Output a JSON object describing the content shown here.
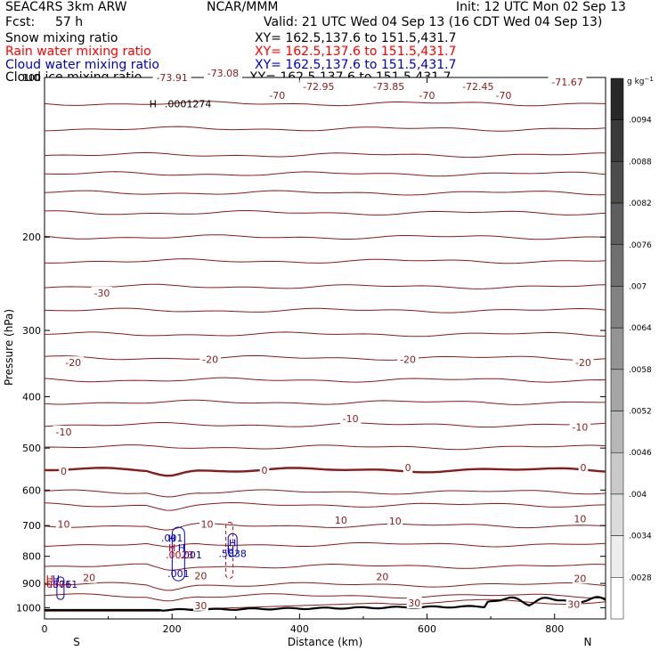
{
  "header": {
    "model": "SEAC4RS  3km ARW",
    "org": "NCAR/MMM",
    "init": "Init: 12 UTC Mon 02 Sep 13",
    "fcst_label": "Fcst:",
    "fcst_value": "57 h",
    "valid": "Valid: 21 UTC Wed 04 Sep 13 (16 CDT Wed 04 Sep 13)",
    "fields": [
      {
        "name": "Snow mixing ratio",
        "xy": "XY= 162.5,137.6 to 151.5,431.7",
        "color": "#000000"
      },
      {
        "name": "Rain water mixing ratio",
        "xy": "XY= 162.5,137.6 to 151.5,431.7",
        "color": "#ff0000"
      },
      {
        "name": "Cloud water mixing ratio",
        "xy": "XY= 162.5,137.6 to 151.5,431.7",
        "color": "#0000cc"
      },
      {
        "name": "Cloud ice mixing ratio",
        "xy": "XY= 162.5,137.6 to 151.5,431.7",
        "color": "#000000"
      }
    ]
  },
  "chart_data": {
    "type": "cross-section contour",
    "ylabel": "Pressure (hPa)",
    "xlabel": "Distance (km)",
    "xlim": [
      0,
      880
    ],
    "ylim": [
      1050,
      100
    ],
    "yscale": "log",
    "xticks": [
      0,
      200,
      400,
      600,
      800
    ],
    "yticks": [
      100,
      200,
      300,
      400,
      500,
      600,
      700,
      800,
      900,
      1000
    ],
    "end_labels": {
      "left": "S",
      "right": "N"
    },
    "colorbar": {
      "unit": "g kg",
      "unit_exp": "−1",
      "labels": [
        ".0094",
        ".0088",
        ".0082",
        ".0076",
        ".007",
        ".0064",
        ".0058",
        ".0052",
        ".0046",
        ".004",
        ".0034",
        ".0028"
      ]
    },
    "temperature_contours": {
      "color": "#8b1a1a",
      "freezing_level_hpa": 550,
      "labels": [
        {
          "text": "-73.91",
          "x": 200,
          "p": 100
        },
        {
          "text": "-73.08",
          "x": 280,
          "p": 98
        },
        {
          "text": "-72.95",
          "x": 430,
          "p": 104
        },
        {
          "text": "-73.85",
          "x": 540,
          "p": 104
        },
        {
          "text": "-72.45",
          "x": 680,
          "p": 104
        },
        {
          "text": "-71.67",
          "x": 820,
          "p": 102
        },
        {
          "text": "-70",
          "x": 365,
          "p": 108
        },
        {
          "text": "-70",
          "x": 600,
          "p": 108
        },
        {
          "text": "-70",
          "x": 720,
          "p": 108
        },
        {
          "text": "-30",
          "x": 90,
          "p": 255
        },
        {
          "text": "-20",
          "x": 45,
          "p": 345
        },
        {
          "text": "-20",
          "x": 260,
          "p": 340
        },
        {
          "text": "-20",
          "x": 570,
          "p": 340
        },
        {
          "text": "-20",
          "x": 845,
          "p": 345
        },
        {
          "text": "-10",
          "x": 30,
          "p": 466
        },
        {
          "text": "-10",
          "x": 480,
          "p": 440
        },
        {
          "text": "-10",
          "x": 840,
          "p": 456
        },
        {
          "text": "0",
          "x": 30,
          "p": 553
        },
        {
          "text": "0",
          "x": 345,
          "p": 550
        },
        {
          "text": "0",
          "x": 570,
          "p": 544
        },
        {
          "text": "0",
          "x": 845,
          "p": 544
        },
        {
          "text": "10",
          "x": 30,
          "p": 695
        },
        {
          "text": "10",
          "x": 255,
          "p": 695
        },
        {
          "text": "10",
          "x": 465,
          "p": 683
        },
        {
          "text": "10",
          "x": 550,
          "p": 686
        },
        {
          "text": "10",
          "x": 840,
          "p": 679
        },
        {
          "text": "20",
          "x": 70,
          "p": 878
        },
        {
          "text": "20",
          "x": 245,
          "p": 870
        },
        {
          "text": "20",
          "x": 530,
          "p": 873
        },
        {
          "text": "20",
          "x": 840,
          "p": 880
        },
        {
          "text": "30",
          "x": 245,
          "p": 990
        },
        {
          "text": "30",
          "x": 580,
          "p": 980
        },
        {
          "text": "30",
          "x": 830,
          "p": 985
        }
      ]
    },
    "mixing_ratio_labels": [
      {
        "text": ".0001274",
        "x": 225,
        "p": 112,
        "color": "#000000"
      },
      {
        "text": ".001",
        "x": 200,
        "p": 738,
        "color": "#0000cc"
      },
      {
        "text": ".001",
        "x": 210,
        "p": 862,
        "color": "#0000cc"
      },
      {
        "text": ".5838",
        "x": 295,
        "p": 790,
        "color": "#0000cc"
      },
      {
        "text": ".0023",
        "x": 212,
        "p": 795,
        "color": "#cc0000"
      },
      {
        "text": ".001",
        "x": 230,
        "p": 795,
        "color": "#0000cc"
      },
      {
        "text": ".0001",
        "x": 20,
        "p": 903,
        "color": "#cc0000"
      },
      {
        "text": ".5761",
        "x": 30,
        "p": 903,
        "color": "#0000cc"
      }
    ],
    "extrema_markers": [
      {
        "text": "H",
        "x": 170,
        "p": 112,
        "color": "#000000"
      },
      {
        "text": "H",
        "x": 200,
        "p": 770,
        "color": "#cc0000"
      },
      {
        "text": "H",
        "x": 215,
        "p": 770,
        "color": "#0000cc"
      },
      {
        "text": "H",
        "x": 292,
        "p": 777,
        "color": "#0000cc"
      },
      {
        "text": "H",
        "x": 8,
        "p": 882,
        "color": "#cc0000"
      },
      {
        "text": "H",
        "x": 18,
        "p": 882,
        "color": "#0000cc"
      },
      {
        "text": "H",
        "x": 200,
        "p": 740,
        "color": "#0000cc"
      },
      {
        "text": "H",
        "x": 295,
        "p": 755,
        "color": "#0000cc"
      }
    ]
  }
}
